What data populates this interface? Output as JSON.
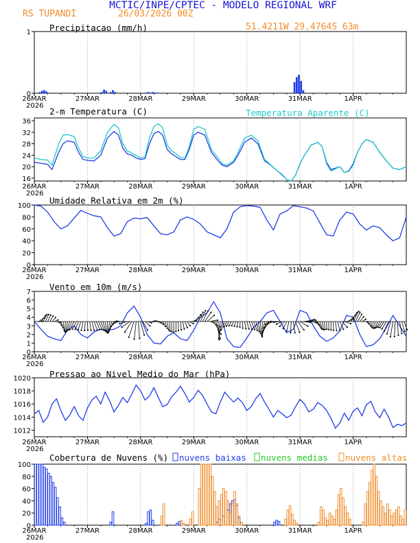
{
  "header": {
    "title": "MCTIC/INPE/CPTEC - MODELO REGIONAL WRF",
    "location": "RS TUPANDI",
    "date": "26/03/2026 00Z",
    "coords": "51.4211W 29.4764S 63m"
  },
  "colors": {
    "title": "#1414d2",
    "orange": "#f08c28",
    "cyan": "#1ec8c8",
    "blue": "#1e3ce6",
    "green": "#28c828",
    "black": "#000000"
  },
  "x_axis": {
    "labels": [
      "26MAR",
      "27MAR",
      "28MAR",
      "29MAR",
      "30MAR",
      "31MAR",
      "1APR"
    ],
    "year": "2026",
    "hours_total": 168
  },
  "chart_data": [
    {
      "id": "precip",
      "type": "bar",
      "title": "Precipitacao (mm/h)",
      "ylim": [
        0,
        1
      ],
      "yticks": [
        0,
        1
      ],
      "series": [
        {
          "name": "precip",
          "color": "#1e3ce6",
          "x": [
            2,
            3,
            4,
            5,
            30,
            31,
            32,
            34,
            35,
            36,
            50,
            51,
            52,
            53,
            54,
            55,
            117,
            118,
            119,
            120,
            121
          ],
          "values": [
            0.02,
            0.04,
            0.05,
            0.03,
            0.02,
            0.06,
            0.04,
            0.02,
            0.05,
            0.02,
            0.01,
            0.02,
            0.01,
            0.02,
            0.01,
            0.01,
            0.18,
            0.26,
            0.3,
            0.2,
            0.05
          ]
        }
      ]
    },
    {
      "id": "temp",
      "type": "line",
      "title": "2-m Temperatura (C)",
      "legend": "Temperatura Aparente (C)",
      "ylim": [
        15,
        37
      ],
      "yticks": [
        16,
        20,
        24,
        28,
        32,
        36
      ],
      "x": [
        0,
        3,
        6,
        8,
        11,
        13,
        15,
        18,
        20,
        22,
        24,
        27,
        30,
        33,
        36,
        38,
        40,
        42,
        44,
        46,
        48,
        50,
        52,
        54,
        56,
        58,
        60,
        62,
        64,
        66,
        68,
        70,
        72,
        74,
        77,
        80,
        83,
        85,
        87,
        90,
        92,
        95,
        98,
        101,
        104,
        106,
        109,
        112,
        114,
        116,
        118,
        120,
        122,
        125,
        128,
        130,
        132,
        134,
        136,
        138,
        140,
        142,
        144,
        146,
        148,
        150,
        153,
        156,
        159,
        162,
        165,
        168
      ],
      "series": [
        {
          "name": "2-m Temperatura",
          "color": "#1e3ce6",
          "values": [
            21.5,
            21.2,
            20.8,
            19.0,
            25.0,
            28.0,
            29.0,
            28.5,
            25.0,
            22.5,
            22.2,
            22.0,
            24.0,
            30.0,
            32.3,
            31.0,
            26.5,
            24.5,
            24.0,
            23.0,
            22.5,
            22.8,
            28.0,
            31.5,
            32.3,
            31.0,
            26.0,
            24.5,
            23.5,
            22.5,
            22.5,
            26.0,
            31.0,
            32.0,
            31.0,
            25.0,
            22.0,
            20.5,
            20.0,
            21.5,
            24.0,
            28.5,
            30.0,
            28.0,
            22.0,
            21.0,
            19.0,
            17.2,
            15.5,
            15.0,
            17.0,
            21.0,
            24.0,
            27.5,
            28.5,
            27.0,
            21.5,
            19.0,
            19.5,
            20.0,
            18.0,
            18.5,
            21.0,
            25.0,
            28.0,
            29.5,
            28.5,
            25.0,
            22.0,
            19.5,
            19.0,
            20.0
          ]
        },
        {
          "name": "Temperatura Aparente",
          "color": "#1ec8c8",
          "values": [
            23.0,
            22.5,
            22.3,
            20.5,
            28.0,
            31.0,
            31.2,
            30.5,
            26.5,
            23.5,
            23.0,
            23.0,
            25.5,
            32.0,
            34.8,
            33.5,
            28.0,
            25.5,
            24.8,
            23.8,
            23.0,
            23.5,
            30.0,
            34.0,
            35.0,
            33.5,
            27.5,
            25.5,
            24.5,
            23.3,
            23.0,
            27.0,
            33.0,
            34.0,
            33.0,
            26.0,
            23.0,
            21.0,
            20.5,
            22.0,
            25.0,
            30.0,
            31.0,
            29.0,
            22.5,
            21.2,
            19.0,
            17.0,
            15.5,
            15.0,
            17.0,
            21.0,
            24.0,
            27.5,
            28.5,
            27.0,
            21.0,
            18.5,
            19.2,
            20.0,
            18.0,
            18.3,
            20.5,
            25.0,
            28.0,
            29.5,
            28.5,
            25.0,
            22.0,
            19.5,
            19.0,
            20.0
          ]
        }
      ]
    },
    {
      "id": "rh",
      "type": "line",
      "title": "Umidade Relativa em 2m (%)",
      "ylim": [
        0,
        100
      ],
      "yticks": [
        0,
        20,
        40,
        60,
        80,
        100
      ],
      "x": [
        0,
        3,
        6,
        9,
        12,
        15,
        18,
        21,
        24,
        27,
        30,
        33,
        36,
        39,
        42,
        45,
        48,
        51,
        54,
        57,
        60,
        63,
        66,
        69,
        72,
        75,
        78,
        81,
        84,
        87,
        90,
        93,
        96,
        99,
        102,
        105,
        108,
        111,
        114,
        117,
        120,
        123,
        126,
        129,
        132,
        135,
        138,
        141,
        144,
        147,
        150,
        153,
        156,
        159,
        162,
        165,
        168
      ],
      "series": [
        {
          "name": "RH",
          "color": "#1e3ce6",
          "values": [
            100,
            98,
            88,
            72,
            60,
            65,
            78,
            91,
            86,
            82,
            80,
            62,
            48,
            52,
            72,
            78,
            77,
            79,
            65,
            52,
            50,
            55,
            75,
            80,
            76,
            68,
            55,
            50,
            45,
            60,
            88,
            97,
            99,
            98,
            96,
            75,
            58,
            85,
            90,
            99,
            97,
            95,
            90,
            70,
            50,
            48,
            75,
            88,
            85,
            68,
            58,
            65,
            62,
            50,
            40,
            45,
            80
          ]
        }
      ]
    },
    {
      "id": "wind",
      "type": "line",
      "title": "Vento em 10m (m/s)",
      "ylim": [
        0,
        7
      ],
      "yticks": [
        0,
        1,
        2,
        3,
        4,
        5,
        6,
        7
      ],
      "barb_level": 3.5,
      "x": [
        0,
        3,
        6,
        9,
        12,
        15,
        18,
        21,
        24,
        27,
        30,
        33,
        36,
        39,
        42,
        45,
        48,
        51,
        54,
        57,
        60,
        63,
        66,
        69,
        72,
        75,
        78,
        81,
        84,
        87,
        90,
        93,
        96,
        99,
        102,
        105,
        108,
        111,
        114,
        117,
        120,
        123,
        126,
        129,
        132,
        135,
        138,
        141,
        144,
        147,
        150,
        153,
        156,
        159,
        162,
        165,
        168
      ],
      "series": [
        {
          "name": "Vento",
          "color": "#1e3ce6",
          "values": [
            3.5,
            2.6,
            1.8,
            1.5,
            1.3,
            2.5,
            3.0,
            2.0,
            1.6,
            2.3,
            2.6,
            2.5,
            2.6,
            3.0,
            4.5,
            5.3,
            4.0,
            2.0,
            1.0,
            0.9,
            1.8,
            2.2,
            1.5,
            1.3,
            2.5,
            4.0,
            4.5,
            5.8,
            4.5,
            1.5,
            0.6,
            0.5,
            1.6,
            2.8,
            3.5,
            4.5,
            4.8,
            3.5,
            2.2,
            2.6,
            4.8,
            4.5,
            3.0,
            1.8,
            1.2,
            1.6,
            2.4,
            4.2,
            4.0,
            2.0,
            0.6,
            0.8,
            1.5,
            2.8,
            4.2,
            3.0,
            1.8
          ]
        }
      ]
    },
    {
      "id": "pressure",
      "type": "line",
      "title": "Pressao ao Nivel Medio do Mar (hPa)",
      "ylim": [
        1011,
        1020
      ],
      "yticks": [
        1012,
        1014,
        1016,
        1018,
        1020
      ],
      "x": [
        0,
        2,
        4,
        6,
        8,
        10,
        12,
        14,
        16,
        18,
        20,
        22,
        24,
        26,
        28,
        30,
        32,
        34,
        36,
        38,
        40,
        42,
        44,
        46,
        48,
        50,
        52,
        54,
        56,
        58,
        60,
        62,
        64,
        66,
        68,
        70,
        72,
        74,
        76,
        78,
        80,
        82,
        84,
        86,
        88,
        90,
        92,
        94,
        96,
        98,
        100,
        102,
        104,
        106,
        108,
        110,
        112,
        114,
        116,
        118,
        120,
        122,
        124,
        126,
        128,
        130,
        132,
        134,
        136,
        138,
        140,
        142,
        144,
        146,
        148,
        150,
        152,
        154,
        156,
        158,
        160,
        162,
        164,
        166,
        168
      ],
      "series": [
        {
          "name": "PNMM",
          "color": "#1e3ce6",
          "values": [
            1014.5,
            1015.0,
            1013.2,
            1014.0,
            1016.0,
            1016.8,
            1015.0,
            1013.5,
            1014.3,
            1015.6,
            1014.2,
            1013.5,
            1015.4,
            1016.6,
            1017.2,
            1016.0,
            1017.8,
            1016.5,
            1014.8,
            1015.8,
            1017.0,
            1016.2,
            1017.5,
            1018.9,
            1018.0,
            1016.6,
            1017.2,
            1018.5,
            1017.0,
            1015.6,
            1015.9,
            1017.1,
            1017.8,
            1018.7,
            1017.6,
            1016.3,
            1017.0,
            1018.1,
            1017.3,
            1016.0,
            1014.8,
            1014.5,
            1016.3,
            1017.8,
            1017.0,
            1016.3,
            1016.9,
            1016.2,
            1015.0,
            1015.6,
            1016.8,
            1017.6,
            1016.3,
            1015.2,
            1014.0,
            1015.0,
            1014.5,
            1013.9,
            1014.3,
            1015.6,
            1016.7,
            1016.0,
            1014.8,
            1015.2,
            1016.2,
            1015.8,
            1015.0,
            1013.8,
            1012.3,
            1013.1,
            1014.6,
            1013.5,
            1014.9,
            1015.4,
            1014.2,
            1015.9,
            1016.4,
            1014.8,
            1013.9,
            1015.2,
            1014.0,
            1012.4,
            1012.9,
            1012.7,
            1013.1
          ]
        }
      ]
    },
    {
      "id": "clouds",
      "type": "bar",
      "title": "Cobertura de Nuvens (%)",
      "ylim": [
        0,
        100
      ],
      "yticks": [
        0,
        20,
        40,
        60,
        80,
        100
      ],
      "legend": [
        "nuvens baixas",
        "nuvens medias",
        "nuvens altas"
      ],
      "series": [
        {
          "name": "nuvens baixas",
          "color": "#1e3ce6",
          "x": [
            0,
            1,
            2,
            3,
            4,
            5,
            6,
            7,
            8,
            9,
            10,
            11,
            12,
            13,
            34,
            35,
            50,
            51,
            52,
            53,
            64,
            65,
            82,
            83,
            85,
            87,
            88,
            89,
            90,
            91,
            92,
            93,
            108,
            109,
            110
          ],
          "values": [
            100,
            100,
            100,
            100,
            95,
            92,
            85,
            80,
            70,
            62,
            45,
            30,
            12,
            5,
            5,
            22,
            3,
            22,
            25,
            8,
            3,
            6,
            5,
            10,
            15,
            25,
            35,
            40,
            42,
            32,
            12,
            5,
            5,
            8,
            6
          ]
        },
        {
          "name": "nuvens medias",
          "color": "#28c828",
          "x": [],
          "values": []
        },
        {
          "name": "nuvens altas",
          "color": "#f08c28",
          "x": [
            57,
            58,
            66,
            67,
            70,
            71,
            74,
            75,
            76,
            77,
            78,
            79,
            80,
            81,
            82,
            83,
            84,
            85,
            86,
            87,
            88,
            89,
            90,
            91,
            92,
            93,
            113,
            114,
            115,
            116,
            117,
            118,
            128,
            129,
            130,
            131,
            132,
            133,
            134,
            135,
            136,
            137,
            138,
            139,
            140,
            141,
            142,
            148,
            149,
            150,
            151,
            152,
            153,
            154,
            155,
            156,
            157,
            158,
            159,
            160,
            161,
            162,
            163,
            164,
            165,
            166,
            167
          ],
          "values": [
            15,
            35,
            8,
            3,
            10,
            22,
            60,
            100,
            100,
            100,
            100,
            100,
            80,
            55,
            30,
            40,
            50,
            60,
            55,
            40,
            20,
            35,
            55,
            35,
            15,
            5,
            10,
            25,
            32,
            18,
            8,
            3,
            5,
            30,
            25,
            12,
            8,
            20,
            15,
            10,
            25,
            50,
            60,
            45,
            30,
            20,
            10,
            5,
            35,
            55,
            70,
            90,
            100,
            80,
            55,
            40,
            30,
            20,
            35,
            25,
            15,
            20,
            25,
            30,
            15,
            10,
            25
          ]
        }
      ]
    }
  ]
}
